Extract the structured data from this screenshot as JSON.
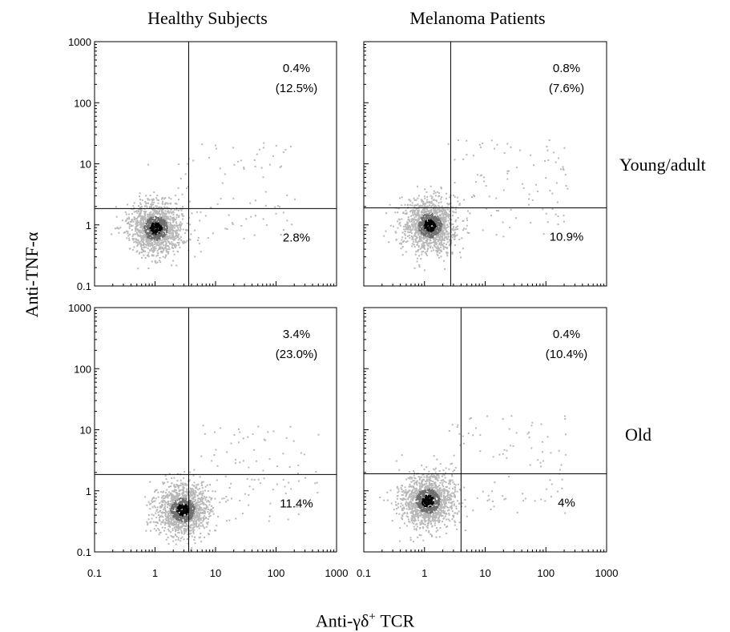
{
  "column_titles": [
    "Healthy Subjects",
    "Melanoma Patients"
  ],
  "row_labels": [
    "Young/adult",
    "Old"
  ],
  "y_axis_title": "Anti-TNF-α",
  "x_axis_title": "Anti-γδ",
  "x_axis_title_sup": "+",
  "x_axis_title_suffix": " TCR",
  "colors": {
    "axis": "#000000",
    "dots_light": "#b8b8b8",
    "dots_mid": "#6e6e6e",
    "dots_dark": "#000000"
  },
  "chart_data": [
    {
      "type": "scatter",
      "panel": "Healthy Subjects, Young/adult",
      "xscale": "log",
      "yscale": "log",
      "xlim": [
        0.1,
        1000
      ],
      "ylim": [
        0.1,
        1000
      ],
      "x_ticks": [],
      "y_ticks": [
        "1000",
        "100",
        "10",
        "1",
        "0.1"
      ],
      "x_gate": 3.6,
      "y_gate": 1.85,
      "quadrant_labels": {
        "upper_right": "0.4%",
        "upper_right_sub": "(12.5%)",
        "lower_right": "2.8%"
      },
      "cluster": {
        "x": 1.0,
        "y": 0.9
      }
    },
    {
      "type": "scatter",
      "panel": "Melanoma Patients, Young/adult",
      "xscale": "log",
      "yscale": "log",
      "xlim": [
        0.1,
        1000
      ],
      "ylim": [
        0.1,
        1000
      ],
      "x_ticks": [],
      "y_ticks": [],
      "x_gate": 2.7,
      "y_gate": 1.9,
      "quadrant_labels": {
        "upper_right": "0.8%",
        "upper_right_sub": "(7.6%)",
        "lower_right": "10.9%"
      },
      "cluster": {
        "x": 1.2,
        "y": 1.0
      }
    },
    {
      "type": "scatter",
      "panel": "Healthy Subjects, Old",
      "xscale": "log",
      "yscale": "log",
      "xlim": [
        0.1,
        1000
      ],
      "ylim": [
        0.1,
        1000
      ],
      "x_ticks": [
        "0.1",
        "1",
        "10",
        "100",
        "1000"
      ],
      "y_ticks": [
        "1000",
        "100",
        "10",
        "1",
        "0.1"
      ],
      "x_gate": 3.6,
      "y_gate": 1.85,
      "quadrant_labels": {
        "upper_right": "3.4%",
        "upper_right_sub": "(23.0%)",
        "lower_right": "11.4%"
      },
      "cluster": {
        "x": 2.8,
        "y": 0.5
      }
    },
    {
      "type": "scatter",
      "panel": "Melanoma Patients, Old",
      "xscale": "log",
      "yscale": "log",
      "xlim": [
        0.1,
        1000
      ],
      "ylim": [
        0.1,
        1000
      ],
      "x_ticks": [
        "0.1",
        "1",
        "10",
        "100",
        "1000"
      ],
      "y_ticks": [],
      "x_gate": 4.0,
      "y_gate": 1.9,
      "quadrant_labels": {
        "upper_right": "0.4%",
        "upper_right_sub": "(10.4%)",
        "lower_right": "4%"
      },
      "cluster": {
        "x": 1.1,
        "y": 0.7
      }
    }
  ]
}
